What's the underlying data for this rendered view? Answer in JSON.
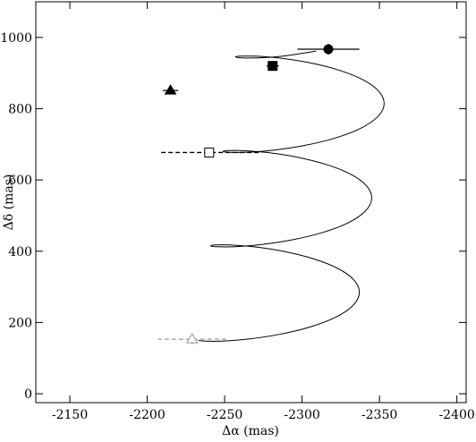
{
  "chart_data": {
    "type": "line",
    "xlabel": "Δα (mas)",
    "ylabel": "Δδ (mas)",
    "xlim": [
      -2128,
      -2406
    ],
    "ylim": [
      -25,
      1100
    ],
    "xticks": [
      -2150,
      -2200,
      -2250,
      -2300,
      -2350,
      -2400
    ],
    "yticks": [
      0,
      200,
      400,
      600,
      800,
      1000
    ],
    "series": [
      {
        "color": "#000000",
        "x": [
          -2233,
          -2237.3,
          -2248.6,
          -2265.4,
          -2285,
          -2304.6,
          -2321.4,
          -2332.7,
          -2337,
          -2333.7,
          -2323.4,
          -2307.6,
          -2289,
          -2270.4,
          -2254.6,
          -2244.3,
          -2241,
          -2245.3,
          -2256.6,
          -2273.4,
          -2293,
          -2312.6,
          -2329.4,
          -2340.7,
          -2345,
          -2341.7,
          -2331.4,
          -2315.6,
          -2297,
          -2278.4,
          -2262.6,
          -2252.3,
          -2249,
          -2253.3,
          -2264.6,
          -2281.4,
          -2301,
          -2320.6,
          -2337.4,
          -2348.7,
          -2353,
          -2349.7,
          -2339.4,
          -2323.6,
          -2305,
          -2286.4,
          -2270.6,
          -2260.3,
          -2257,
          -2261.3,
          -2272.6,
          -2289.4,
          -2309
        ],
        "values": [
          150,
          147.5,
          147.7,
          153.5,
          166.3,
          186.6,
          214,
          246.8,
          282.5,
          318.2,
          351,
          378.4,
          398.8,
          411.5,
          417.3,
          417.5,
          415,
          412.5,
          412.7,
          418.5,
          431.3,
          451.6,
          479,
          511.8,
          547.5,
          583.2,
          616,
          643.4,
          663.8,
          676.5,
          682.3,
          682.5,
          680,
          677.5,
          677.7,
          683.5,
          696.3,
          716.6,
          744,
          776.8,
          812.5,
          848.2,
          881,
          908.4,
          928.8,
          941.5,
          947.3,
          947.5,
          945,
          942.5,
          942.7,
          948.5,
          961.3
        ]
      }
    ],
    "points": [
      {
        "marker": "circle",
        "filled": true,
        "color": "#000000",
        "dashed": false,
        "x": -2317,
        "y": 967,
        "xerr": 20,
        "yerr": 15
      },
      {
        "marker": "square",
        "filled": true,
        "color": "#000000",
        "dashed": false,
        "x": -2281,
        "y": 920,
        "xerr": 4,
        "yerr": 8
      },
      {
        "marker": "triangle",
        "filled": true,
        "color": "#000000",
        "dashed": false,
        "x": -2215,
        "y": 851,
        "xerr": 5,
        "yerr": 4
      },
      {
        "marker": "square",
        "filled": false,
        "color": "#000000",
        "dashed": true,
        "x": -2240,
        "y": 677,
        "xerr": 32,
        "yerr": 14
      },
      {
        "marker": "triangle",
        "filled": false,
        "color": "#999999",
        "dashed": true,
        "x": -2229,
        "y": 153,
        "xerr": 22,
        "yerr": 14
      }
    ]
  }
}
